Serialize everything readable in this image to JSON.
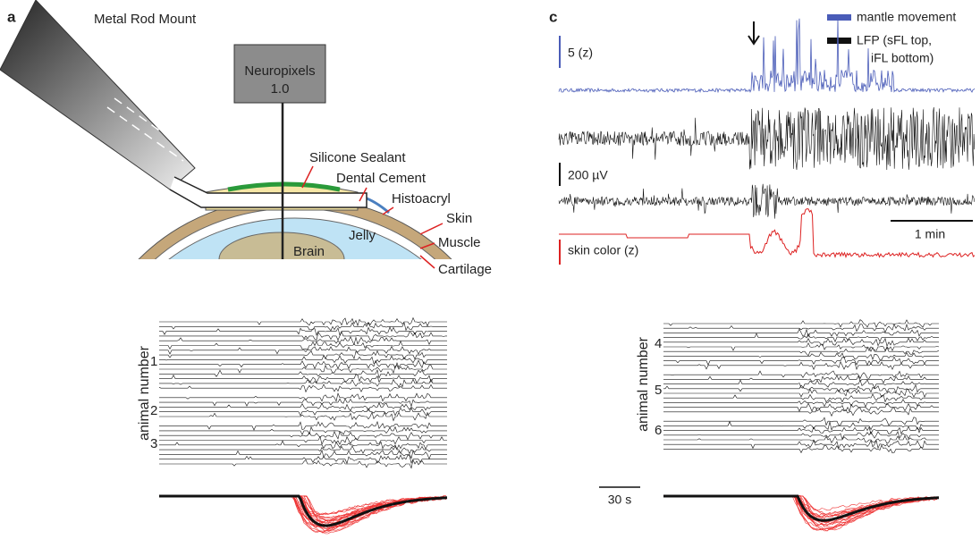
{
  "panel_a": {
    "label": "a",
    "rod": "Metal Rod Mount",
    "probe_line1": "Neuropixels",
    "probe_line2": "1.0",
    "layers": [
      "Silicone Sealant",
      "Dental Cement",
      "Histoacryl",
      "Skin",
      "Muscle",
      "Cartilage"
    ],
    "brain": "Brain",
    "jelly": "Jelly"
  },
  "panel_c": {
    "label": "c",
    "legend": [
      "mantle movement",
      "LFP (sFL top,",
      "iFL bottom)"
    ],
    "scale_mantle": "5 (z)",
    "scale_lfp": "200 µV",
    "scale_time": "1 min",
    "scale_skin": "skin color (z)"
  },
  "panel_b": {
    "axis_label": "animal number",
    "left_animals": [
      "1",
      "2",
      "3"
    ],
    "right_animals": [
      "4",
      "5",
      "6"
    ],
    "scale_time": "30 s"
  }
}
